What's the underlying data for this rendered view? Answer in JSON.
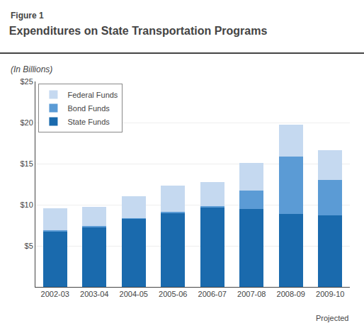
{
  "chart_data": {
    "type": "bar",
    "stacked": true,
    "title": "Expenditures on State Transportation Programs",
    "subtitle": "(In Billions)",
    "annotations": [
      "Figure 1",
      "Projected"
    ],
    "categories": [
      "2002-03",
      "2003-04",
      "2004-05",
      "2005-06",
      "2006-07",
      "2007-08",
      "2008-09",
      "2009-10"
    ],
    "series": [
      {
        "name": "State Funds",
        "color": "#1a6aad",
        "values": [
          6.8,
          7.2,
          8.3,
          9.0,
          9.7,
          9.5,
          8.9,
          8.7
        ]
      },
      {
        "name": "Bond Funds",
        "color": "#5b9bd5",
        "values": [
          0.1,
          0.2,
          0.1,
          0.1,
          0.1,
          2.2,
          7.0,
          4.3
        ]
      },
      {
        "name": "Federal Funds",
        "color": "#c5d9f0",
        "values": [
          2.7,
          2.3,
          2.6,
          3.2,
          3.0,
          3.4,
          3.8,
          3.6
        ]
      }
    ],
    "ylim": [
      0,
      25
    ],
    "yticks": [
      {
        "value": 5,
        "label": "$5"
      },
      {
        "value": 10,
        "label": "$10"
      },
      {
        "value": 15,
        "label": "$15"
      },
      {
        "value": 20,
        "label": "$20"
      },
      {
        "value": 25,
        "label": "$25"
      }
    ],
    "grid": true,
    "legend": "upper left"
  }
}
